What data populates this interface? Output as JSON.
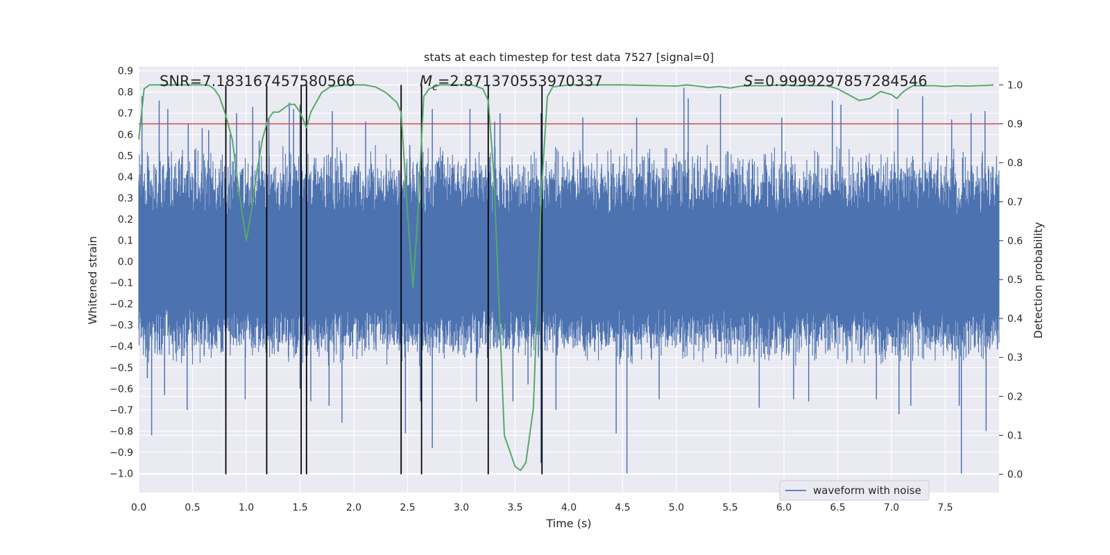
{
  "chart_data": {
    "type": "line",
    "title": "stats at each timestep for test data 7527 [signal=0]",
    "xlabel": "Time (s)",
    "ylabel": "Whitened strain",
    "y2label": "Detection probability",
    "xlim": [
      0.0,
      8.0
    ],
    "ylim": [
      -1.09,
      0.92
    ],
    "y2lim": [
      -0.047,
      1.047
    ],
    "xticks": [
      "0.0",
      "0.5",
      "1.0",
      "1.5",
      "2.0",
      "2.5",
      "3.0",
      "3.5",
      "4.0",
      "4.5",
      "5.0",
      "5.5",
      "6.0",
      "6.5",
      "7.0",
      "7.5"
    ],
    "yticks": [
      "0.9",
      "0.8",
      "0.7",
      "0.6",
      "0.5",
      "0.4",
      "0.3",
      "0.2",
      "0.1",
      "0.0",
      "−0.1",
      "−0.2",
      "−0.3",
      "−0.4",
      "−0.5",
      "−0.6",
      "−0.7",
      "−0.8",
      "−0.9",
      "−1.0"
    ],
    "y2ticks": [
      "1.0",
      "0.9",
      "0.8",
      "0.7",
      "0.6",
      "0.5",
      "0.4",
      "0.3",
      "0.2",
      "0.1",
      "0.0"
    ],
    "grid": true,
    "legend": {
      "placement": "lower right",
      "entries": [
        "waveform with noise"
      ]
    },
    "annotations": {
      "snr": "SNR=7.183167457580566",
      "mc_symbol": "M",
      "mc_sub": "c",
      "mc_value": "=2.871370553970337",
      "s_symbol": "S",
      "s_value": "=0.9999297857284546"
    },
    "threshold": 0.9,
    "vlines": [
      0.81,
      1.19,
      1.51,
      1.56,
      2.44,
      2.63,
      3.25,
      3.75
    ],
    "series": [
      {
        "name": "waveform with noise",
        "color": "#4c72b0",
        "envelope": {
          "top_typical": 0.5,
          "bottom_typical": -0.45
        },
        "spikes": [
          [
            0.03,
            0.78
          ],
          [
            0.08,
            -0.55
          ],
          [
            0.12,
            -0.82
          ],
          [
            0.19,
            0.76
          ],
          [
            0.27,
            0.72
          ],
          [
            0.24,
            -0.63
          ],
          [
            0.45,
            -0.7
          ],
          [
            0.46,
            0.65
          ],
          [
            0.59,
            0.63
          ],
          [
            0.65,
            0.62
          ],
          [
            0.81,
            -0.68
          ],
          [
            0.85,
            0.6
          ],
          [
            0.91,
            0.7
          ],
          [
            0.99,
            -0.65
          ],
          [
            1.06,
            0.73
          ],
          [
            1.12,
            0.57
          ],
          [
            1.21,
            0.68
          ],
          [
            1.4,
            0.75
          ],
          [
            1.44,
            0.72
          ],
          [
            1.5,
            -0.6
          ],
          [
            1.5,
            0.74
          ],
          [
            1.6,
            -0.66
          ],
          [
            1.77,
            -0.68
          ],
          [
            1.8,
            0.71
          ],
          [
            1.89,
            -0.76
          ],
          [
            2.11,
            0.66
          ],
          [
            2.48,
            -0.81
          ],
          [
            2.52,
            0.55
          ],
          [
            2.62,
            -0.66
          ],
          [
            2.73,
            0.72
          ],
          [
            2.73,
            -0.88
          ],
          [
            3.08,
            0.72
          ],
          [
            3.14,
            -0.66
          ],
          [
            3.31,
            0.66
          ],
          [
            3.36,
            0.7
          ],
          [
            3.48,
            -0.66
          ],
          [
            3.62,
            -0.58
          ],
          [
            3.88,
            -0.7
          ],
          [
            4.13,
            0.68
          ],
          [
            4.44,
            -0.81
          ],
          [
            4.54,
            -1.0
          ],
          [
            4.63,
            0.68
          ],
          [
            4.84,
            -0.65
          ],
          [
            5.07,
            0.82
          ],
          [
            5.11,
            0.77
          ],
          [
            5.41,
            0.79
          ],
          [
            5.77,
            -0.69
          ],
          [
            5.98,
            0.68
          ],
          [
            6.09,
            -0.65
          ],
          [
            6.23,
            -0.66
          ],
          [
            6.45,
            0.76
          ],
          [
            6.53,
            0.74
          ],
          [
            6.86,
            -0.65
          ],
          [
            7.07,
            -0.72
          ],
          [
            7.06,
            0.72
          ],
          [
            7.18,
            -0.68
          ],
          [
            7.29,
            0.78
          ],
          [
            7.56,
            0.67
          ],
          [
            7.63,
            -0.68
          ],
          [
            7.65,
            -1.0
          ],
          [
            7.74,
            0.7
          ],
          [
            7.88,
            -0.8
          ],
          [
            7.87,
            0.71
          ],
          [
            3.74,
            0.7
          ],
          [
            3.74,
            -0.95
          ]
        ]
      },
      {
        "name": "detection probability",
        "color": "#55a868",
        "axis": "right",
        "x": [
          0.0,
          0.05,
          0.1,
          0.2,
          0.3,
          0.4,
          0.5,
          0.6,
          0.65,
          0.7,
          0.75,
          0.8,
          0.87,
          0.93,
          1.0,
          1.05,
          1.1,
          1.15,
          1.2,
          1.25,
          1.3,
          1.35,
          1.4,
          1.45,
          1.5,
          1.56,
          1.6,
          1.7,
          1.78,
          1.9,
          2.0,
          2.1,
          2.2,
          2.3,
          2.4,
          2.44,
          2.5,
          2.55,
          2.59,
          2.65,
          2.7,
          2.8,
          2.9,
          3.0,
          3.1,
          3.2,
          3.25,
          3.3,
          3.4,
          3.5,
          3.55,
          3.6,
          3.67,
          3.72,
          3.75,
          3.8,
          3.85,
          4.0,
          4.5,
          5.0,
          5.1,
          5.2,
          5.3,
          5.4,
          5.5,
          5.6,
          5.7,
          5.8,
          5.9,
          6.0,
          6.1,
          6.2,
          6.3,
          6.4,
          6.5,
          6.6,
          6.7,
          6.8,
          6.9,
          7.0,
          7.05,
          7.1,
          7.15,
          7.2,
          7.3,
          7.4,
          7.5,
          7.6,
          7.7,
          7.8,
          7.9,
          7.95
        ],
        "y": [
          0.86,
          0.99,
          1.0,
          1.0,
          1.0,
          1.0,
          1.0,
          1.0,
          0.999,
          0.99,
          0.97,
          0.93,
          0.86,
          0.73,
          0.6,
          0.68,
          0.78,
          0.86,
          0.91,
          0.93,
          0.93,
          0.94,
          0.95,
          0.95,
          0.93,
          0.89,
          0.93,
          0.98,
          0.995,
          1.0,
          1.0,
          1.0,
          0.995,
          0.98,
          0.955,
          0.93,
          0.67,
          0.48,
          0.64,
          0.97,
          0.99,
          1.0,
          1.0,
          1.0,
          1.0,
          0.99,
          0.96,
          0.78,
          0.1,
          0.02,
          0.01,
          0.03,
          0.17,
          0.55,
          0.75,
          0.97,
          0.995,
          1.0,
          1.0,
          0.997,
          1.0,
          0.997,
          0.993,
          0.996,
          0.992,
          0.997,
          0.998,
          0.998,
          0.999,
          1.0,
          0.998,
          0.999,
          0.998,
          0.998,
          0.99,
          0.975,
          0.96,
          0.965,
          0.983,
          0.975,
          0.965,
          0.98,
          0.99,
          0.998,
          0.998,
          0.998,
          0.996,
          0.998,
          0.997,
          0.998,
          0.999,
          1.0
        ]
      }
    ]
  }
}
